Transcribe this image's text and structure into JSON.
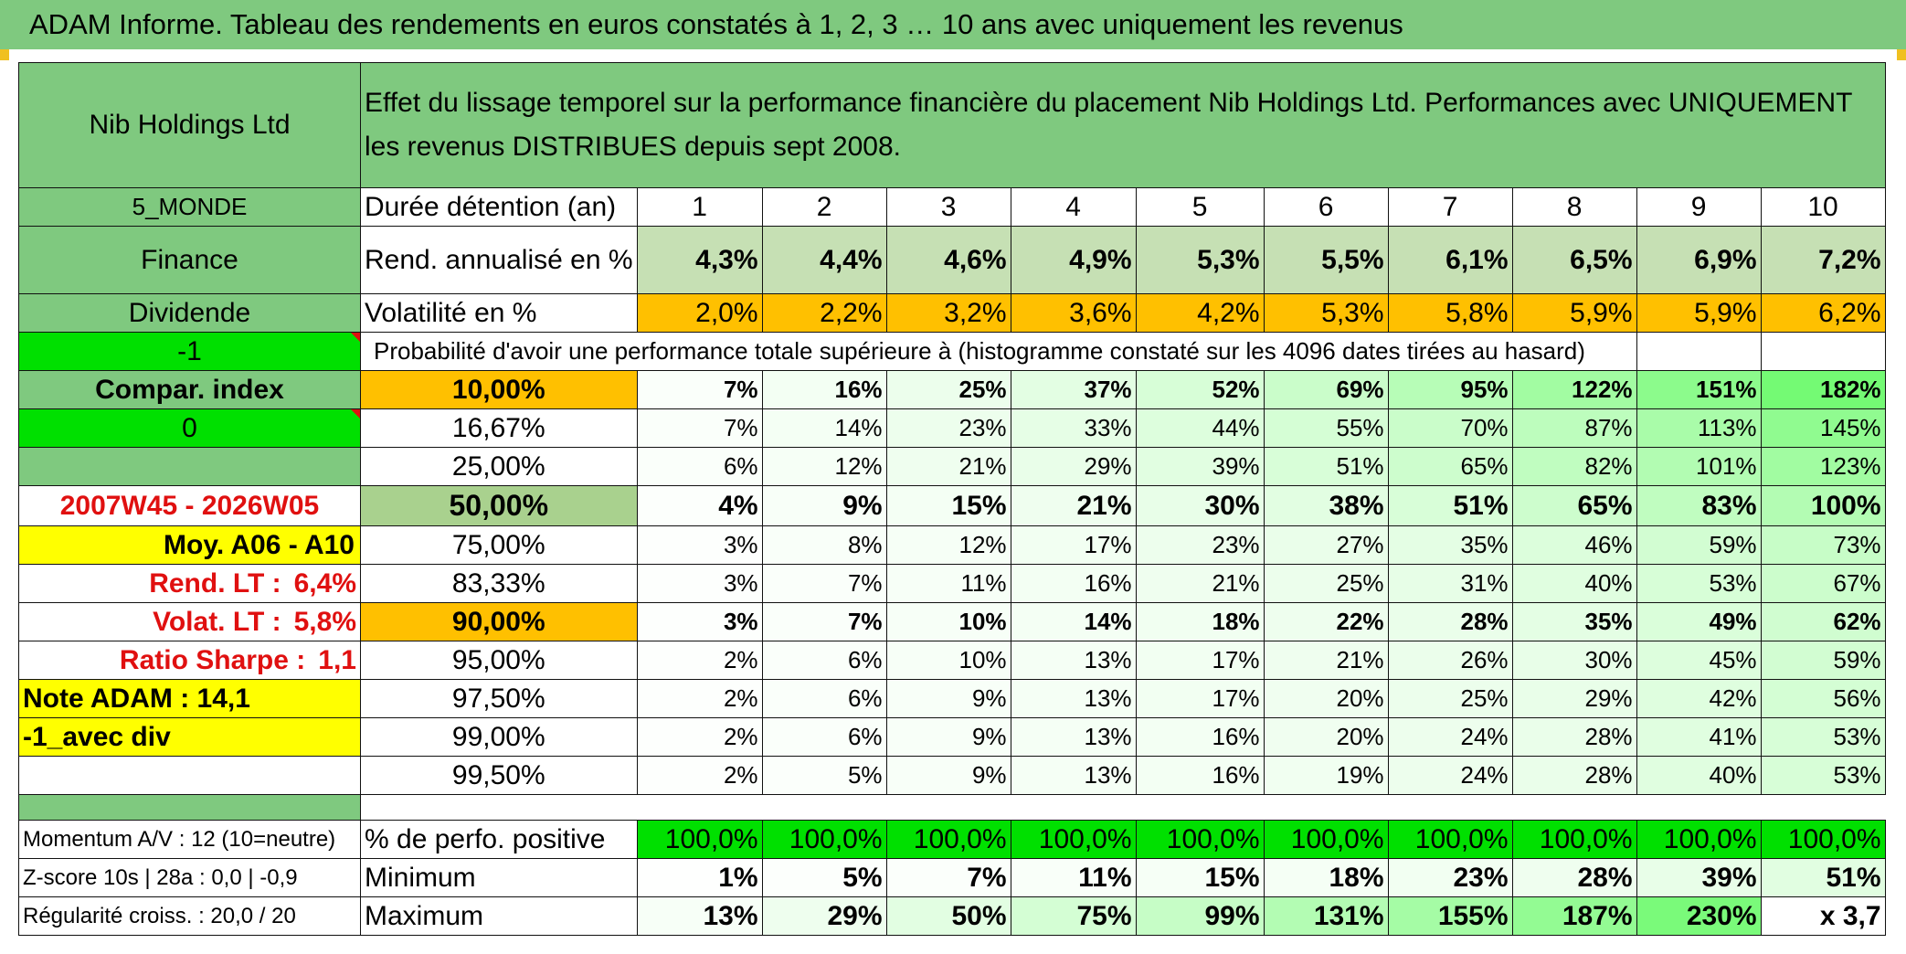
{
  "title": "ADAM Informe. Tableau des rendements en euros constatés à 1, 2, 3 … 10 ans avec uniquement les revenus",
  "header": {
    "company": "Nib Holdings Ltd",
    "description": "Effet du lissage temporel sur la performance financière du placement Nib Holdings Ltd. Performances avec UNIQUEMENT les revenus DISTRIBUES depuis sept 2008."
  },
  "side": {
    "zone": "5_MONDE",
    "sector": "Finance",
    "type": "Dividende",
    "flag": "-1",
    "compar_label": "Compar. index",
    "compar_value": "0",
    "period": "2007W45 - 2026W05",
    "moy": "Moy. A06 - A10",
    "rend_lt_label": "Rend. LT :",
    "rend_lt_value": "6,4%",
    "volat_lt_label": "Volat. LT :",
    "volat_lt_value": "5,8%",
    "sharpe_label": "Ratio Sharpe :",
    "sharpe_value": "1,1",
    "note": "Note ADAM : 14,1",
    "avec_div": "-1_avec div",
    "momentum": "Momentum A/V : 12 (10=neutre)",
    "zscore": "Z-score 10s | 28a : 0,0 | -0,9",
    "regularite": "Régularité croiss. : 20,0 / 20"
  },
  "labels": {
    "duree": "Durée détention (an)",
    "rend": "Rend. annualisé en %",
    "volat": "Volatilité en %",
    "proba": "Probabilité d'avoir une performance totale supérieure à (histogramme constaté sur les 4096 dates tirées au hasard)",
    "positive": "% de perfo. positive",
    "minimum": "Minimum",
    "maximum": "Maximum"
  },
  "years": [
    "1",
    "2",
    "3",
    "4",
    "5",
    "6",
    "7",
    "8",
    "9",
    "10"
  ],
  "rend": [
    "4,3%",
    "4,4%",
    "4,6%",
    "4,9%",
    "5,3%",
    "5,5%",
    "6,1%",
    "6,5%",
    "6,9%",
    "7,2%"
  ],
  "volat": [
    "2,0%",
    "2,2%",
    "3,2%",
    "3,6%",
    "4,2%",
    "5,3%",
    "5,8%",
    "5,9%",
    "5,9%",
    "6,2%"
  ],
  "quantiles": [
    {
      "pct": "10,00%",
      "values": [
        "7%",
        "16%",
        "25%",
        "37%",
        "52%",
        "69%",
        "95%",
        "122%",
        "151%",
        "182%"
      ]
    },
    {
      "pct": "16,67%",
      "values": [
        "7%",
        "14%",
        "23%",
        "33%",
        "44%",
        "55%",
        "70%",
        "87%",
        "113%",
        "145%"
      ]
    },
    {
      "pct": "25,00%",
      "values": [
        "6%",
        "12%",
        "21%",
        "29%",
        "39%",
        "51%",
        "65%",
        "82%",
        "101%",
        "123%"
      ]
    },
    {
      "pct": "50,00%",
      "values": [
        "4%",
        "9%",
        "15%",
        "21%",
        "30%",
        "38%",
        "51%",
        "65%",
        "83%",
        "100%"
      ]
    },
    {
      "pct": "75,00%",
      "values": [
        "3%",
        "8%",
        "12%",
        "17%",
        "23%",
        "27%",
        "35%",
        "46%",
        "59%",
        "73%"
      ]
    },
    {
      "pct": "83,33%",
      "values": [
        "3%",
        "7%",
        "11%",
        "16%",
        "21%",
        "25%",
        "31%",
        "40%",
        "53%",
        "67%"
      ]
    },
    {
      "pct": "90,00%",
      "values": [
        "3%",
        "7%",
        "10%",
        "14%",
        "18%",
        "22%",
        "28%",
        "35%",
        "49%",
        "62%"
      ]
    },
    {
      "pct": "95,00%",
      "values": [
        "2%",
        "6%",
        "10%",
        "13%",
        "17%",
        "21%",
        "26%",
        "30%",
        "45%",
        "59%"
      ]
    },
    {
      "pct": "97,50%",
      "values": [
        "2%",
        "6%",
        "9%",
        "13%",
        "17%",
        "20%",
        "25%",
        "29%",
        "42%",
        "56%"
      ]
    },
    {
      "pct": "99,00%",
      "values": [
        "2%",
        "6%",
        "9%",
        "13%",
        "16%",
        "20%",
        "24%",
        "28%",
        "41%",
        "53%"
      ]
    },
    {
      "pct": "99,50%",
      "values": [
        "2%",
        "5%",
        "9%",
        "13%",
        "16%",
        "19%",
        "24%",
        "28%",
        "40%",
        "53%"
      ]
    }
  ],
  "positive": [
    "100,0%",
    "100,0%",
    "100,0%",
    "100,0%",
    "100,0%",
    "100,0%",
    "100,0%",
    "100,0%",
    "100,0%",
    "100,0%"
  ],
  "minimum": [
    "1%",
    "5%",
    "7%",
    "11%",
    "15%",
    "18%",
    "23%",
    "28%",
    "39%",
    "51%"
  ],
  "maximum": [
    "13%",
    "29%",
    "50%",
    "75%",
    "99%",
    "131%",
    "155%",
    "187%",
    "230%",
    "x 3,7"
  ]
}
